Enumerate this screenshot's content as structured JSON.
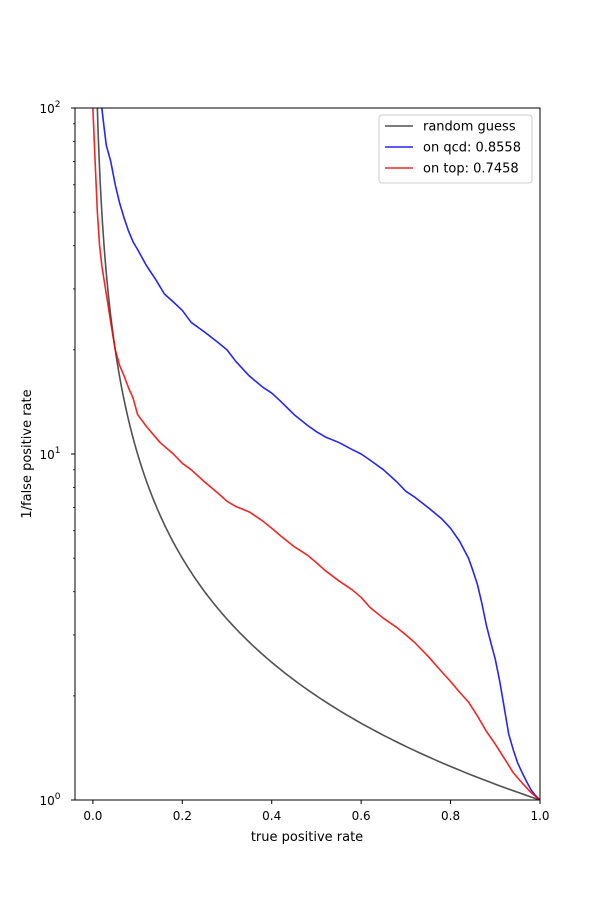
{
  "chart_data": {
    "type": "line",
    "xlabel": "true positive rate",
    "ylabel": "1/false positive rate",
    "xlim": [
      -0.04,
      1.0
    ],
    "ylim": [
      1,
      100
    ],
    "yscale": "log",
    "grid": false,
    "legend_position": "top-right",
    "x_ticks": [
      "0.0",
      "0.2",
      "0.4",
      "0.6",
      "0.8",
      "1.0"
    ],
    "x_tick_values": [
      0.0,
      0.2,
      0.4,
      0.6,
      0.8,
      1.0
    ],
    "y_ticks": [
      {
        "value": 1,
        "base": "10",
        "exp": "0"
      },
      {
        "value": 10,
        "base": "10",
        "exp": "1"
      },
      {
        "value": 100,
        "base": "10",
        "exp": "2"
      }
    ],
    "series": [
      {
        "name": "random guess",
        "color": "#333333",
        "function": "1/x",
        "x": [
          0.01,
          0.012,
          0.015,
          0.02,
          0.025,
          0.03,
          0.04,
          0.05,
          0.06,
          0.07,
          0.08,
          0.1,
          0.12,
          0.15,
          0.2,
          0.25,
          0.3,
          0.35,
          0.4,
          0.45,
          0.5,
          0.55,
          0.6,
          0.65,
          0.7,
          0.75,
          0.8,
          0.85,
          0.9,
          0.95,
          1.0
        ],
        "y": [
          100,
          83.3,
          66.7,
          50,
          40,
          33.3,
          25,
          20,
          16.7,
          14.3,
          12.5,
          10,
          8.33,
          6.67,
          5,
          4,
          3.33,
          2.86,
          2.5,
          2.22,
          2,
          1.82,
          1.67,
          1.54,
          1.43,
          1.33,
          1.25,
          1.18,
          1.11,
          1.05,
          1.0
        ]
      },
      {
        "name": "on qcd: 0.8558",
        "color": "#0000ee",
        "x": [
          0.02,
          0.025,
          0.03,
          0.04,
          0.05,
          0.06,
          0.07,
          0.08,
          0.09,
          0.1,
          0.12,
          0.14,
          0.16,
          0.18,
          0.2,
          0.22,
          0.25,
          0.28,
          0.3,
          0.32,
          0.35,
          0.38,
          0.4,
          0.42,
          0.45,
          0.48,
          0.5,
          0.52,
          0.55,
          0.58,
          0.6,
          0.62,
          0.65,
          0.68,
          0.7,
          0.72,
          0.75,
          0.78,
          0.8,
          0.82,
          0.84,
          0.85,
          0.86,
          0.87,
          0.88,
          0.89,
          0.9,
          0.91,
          0.92,
          0.93,
          0.94,
          0.95,
          0.96,
          0.97,
          0.98,
          0.99,
          1.0
        ],
        "y": [
          100,
          88,
          78,
          70,
          60,
          53,
          48,
          44,
          41,
          39,
          35,
          32,
          29,
          27.5,
          26,
          24,
          22.5,
          21,
          20,
          18.5,
          16.8,
          15.6,
          15,
          14.2,
          13,
          12.1,
          11.6,
          11.2,
          10.8,
          10.3,
          10,
          9.6,
          9.0,
          8.3,
          7.8,
          7.5,
          7.0,
          6.5,
          6.1,
          5.6,
          5.0,
          4.6,
          4.2,
          3.7,
          3.2,
          2.85,
          2.55,
          2.2,
          1.85,
          1.55,
          1.4,
          1.28,
          1.2,
          1.13,
          1.07,
          1.03,
          1.0
        ]
      },
      {
        "name": "on top: 0.7458",
        "color": "#ee0000",
        "x": [
          0.0,
          0.005,
          0.01,
          0.015,
          0.02,
          0.03,
          0.04,
          0.05,
          0.06,
          0.07,
          0.08,
          0.09,
          0.1,
          0.12,
          0.15,
          0.18,
          0.2,
          0.22,
          0.25,
          0.28,
          0.3,
          0.32,
          0.35,
          0.38,
          0.4,
          0.42,
          0.45,
          0.48,
          0.5,
          0.52,
          0.55,
          0.58,
          0.6,
          0.62,
          0.65,
          0.68,
          0.7,
          0.72,
          0.75,
          0.78,
          0.8,
          0.82,
          0.84,
          0.86,
          0.88,
          0.9,
          0.92,
          0.94,
          0.96,
          0.98,
          1.0
        ],
        "y": [
          100,
          70,
          50,
          40,
          35,
          29,
          24,
          20,
          18,
          16.8,
          15.5,
          14.5,
          13,
          12,
          10.8,
          10,
          9.4,
          9.0,
          8.3,
          7.7,
          7.3,
          7.05,
          6.8,
          6.4,
          6.1,
          5.8,
          5.4,
          5.1,
          4.85,
          4.6,
          4.3,
          4.05,
          3.85,
          3.6,
          3.35,
          3.15,
          3.0,
          2.85,
          2.6,
          2.35,
          2.2,
          2.05,
          1.92,
          1.75,
          1.58,
          1.45,
          1.32,
          1.2,
          1.12,
          1.05,
          1.0
        ]
      }
    ]
  }
}
